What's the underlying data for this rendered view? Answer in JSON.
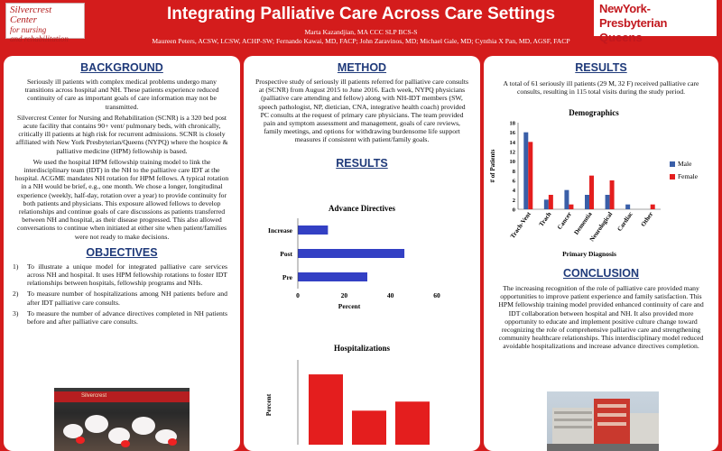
{
  "header": {
    "title": "Integrating Palliative Care Across Care Settings",
    "authors_line1": "Marta Kazandjian, MA CCC SLP BCS-S",
    "authors_line2": "Maureen Peters, ACSW, LCSW, ACHP-SW; Fernando Kawai, MD, FACP; John Zaravinos, MD; Michael Gale, MD; Cynthia X Pan, MD, AGSF, FACP",
    "logo_left_line1": "Silvercrest",
    "logo_left_line2": "Center",
    "logo_left_line3": "for nursing",
    "logo_left_line4": "and rehabilitation",
    "logo_right_line1": "NewYork-Presbyterian",
    "logo_right_line2": "Queens"
  },
  "background": {
    "heading": "BACKGROUND",
    "p1": "Seriously ill patients with complex medical problems undergo many transitions across hospital and NH. These patients experience reduced continuity of care as important goals of care information may not be transmitted.",
    "p2": "Silvercrest Center for Nursing and Rehabilitation (SCNR) is a 320 bed post acute facility that contains 90+ vent/ pulmonary beds, with chronically, critically ill patients at high risk for recurrent admissions. SCNR is closely affiliated with New York Presbyterian/Queens (NYPQ) where the hospice & palliative medicine (HPM) fellowship is based.",
    "p3": "We used the hospital  HPM fellowship training model to link the interdisciplinary team (IDT) in the NH to the palliative care IDT at the hospital. ACGME mandates NH rotation for HPM fellows.  A typical rotation in a NH would be brief, e.g., one month.  We chose a longer, longitudinal experience (weekly, half-day, rotation over a year) to provide continuity for both patients and physicians. This exposure allowed fellows to develop relationships and continue goals of care discussions as patients transferred between NH and hospital, as their disease progressed. This also allowed conversations to continue when initiated at either site when patient/families were not ready to make decisions."
  },
  "objectives": {
    "heading": "OBJECTIVES",
    "items": [
      {
        "num": "1)",
        "text": "To illustrate a unique model for integrated palliative care services across NH and hospital.  It uses HPM fellowship rotations to foster IDT relationships between hospitals, fellowship programs and NHs."
      },
      {
        "num": "2)",
        "text": "To measure number of hospitalizations among NH patients before and after IDT palliative care consults."
      },
      {
        "num": "3)",
        "text": "To measure the number of advance directives completed in NH patients before and after palliative care consults."
      }
    ],
    "photo_awning_text": "Silvercrest"
  },
  "method": {
    "heading": "METHOD",
    "text": "Prospective study of seriously ill patients referred for palliative care consults at  (SCNR) from August 2015 to June 2016. Each week, NYPQ physicians (palliative care attending and fellow) along with NH-IDT members (SW, speech pathologist, NP, dietician, CNA, integrative health coach) provided PC consults at the request of primary care physicians. The team provided pain and symptom assessment and management, goals of care reviews, family meetings, and options for withdrawing burdensome life support measures if consistent with patient/family goals."
  },
  "results_mid": {
    "heading": "RESULTS"
  },
  "results_right": {
    "heading": "RESULTS",
    "text": "A total of 61 seriously ill patients (29 M, 32 F) received palliative care consults, resulting in 115 total visits during the study period."
  },
  "conclusion": {
    "heading": "CONCLUSION",
    "text": "The increasing recognition of the role of palliative care provided many opportunities to improve patient experience and family satisfaction. This HPM fellowship training model provided enhanced continuity of care and IDT collaboration between hospital and NH. It also provided more opportunity to educate and implement positive culture change toward recognizing the role of comprehensive palliative care and strengthening community healthcare relationships. This interdisciplinary model reduced avoidable hospitalizations and increase advance directives completion."
  },
  "chart_data": [
    {
      "type": "bar",
      "orientation": "horizontal",
      "title": "Advance Directives",
      "categories": [
        "Increase",
        "Post",
        "Pre"
      ],
      "values": [
        13,
        46,
        30
      ],
      "xlabel": "Percent",
      "ylabel": "",
      "xlim": [
        0,
        60
      ],
      "xticks": [
        0,
        20,
        40,
        60
      ],
      "color": "#3340c4",
      "grid": false
    },
    {
      "type": "bar",
      "title": "Hospitalizations",
      "categories": [
        "",
        "",
        ""
      ],
      "values": [
        31,
        15,
        19
      ],
      "xlabel": "",
      "ylabel": "Percent",
      "color": "#e41e1e",
      "grid": false
    },
    {
      "type": "bar",
      "title": "Demographics",
      "xlabel": "Primary Diagnosis",
      "ylabel": "# of Patients",
      "categories": [
        "Trach-Vent",
        "Trach",
        "Cancer",
        "Dementia",
        "Neurological",
        "Cardiac",
        "Other"
      ],
      "series": [
        {
          "name": "Male",
          "values": [
            16,
            2,
            4,
            3,
            3,
            1,
            0
          ],
          "color": "#3a5fa8"
        },
        {
          "name": "Female",
          "values": [
            14,
            3,
            1,
            7,
            6,
            0,
            1
          ],
          "color": "#e41e1e"
        }
      ],
      "ylim": [
        0,
        18
      ],
      "yticks": [
        0,
        2,
        4,
        6,
        8,
        10,
        12,
        14,
        16,
        18
      ],
      "legend": "right",
      "grid": false
    }
  ]
}
